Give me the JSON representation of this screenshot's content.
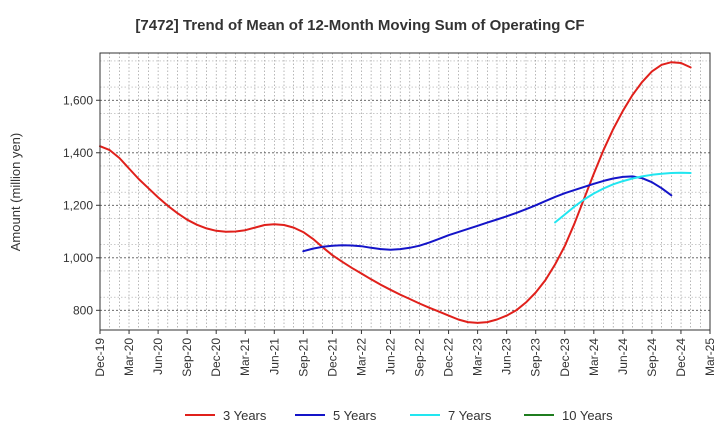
{
  "chart_data": {
    "type": "line",
    "title": "[7472]  Trend of Mean of 12-Month Moving Sum of Operating CF",
    "xlabel": "",
    "ylabel": "Amount (million yen)",
    "ylim": [
      725,
      1780
    ],
    "yticks": [
      800,
      1000,
      1200,
      1400,
      1600
    ],
    "ytick_labels": [
      "800",
      "1,000",
      "1,200",
      "1,400",
      "1,600"
    ],
    "x_start": "Dec-19",
    "x_months_total": 63,
    "xtick_labels": [
      "Dec-19",
      "Mar-20",
      "Jun-20",
      "Sep-20",
      "Dec-20",
      "Mar-21",
      "Jun-21",
      "Sep-21",
      "Dec-21",
      "Mar-22",
      "Jun-22",
      "Sep-22",
      "Dec-22",
      "Mar-23",
      "Jun-23",
      "Sep-23",
      "Dec-23",
      "Mar-24",
      "Jun-24",
      "Sep-24",
      "Dec-24",
      "Mar-25"
    ],
    "grid": true,
    "legend_position": "bottom",
    "series": [
      {
        "name": "3 Years",
        "color": "#e0201b",
        "start_index": 0,
        "values": [
          1425,
          1410,
          1380,
          1340,
          1300,
          1265,
          1230,
          1198,
          1170,
          1145,
          1126,
          1112,
          1103,
          1099,
          1100,
          1105,
          1115,
          1125,
          1128,
          1125,
          1115,
          1098,
          1072,
          1040,
          1010,
          985,
          962,
          940,
          918,
          897,
          878,
          860,
          843,
          826,
          810,
          795,
          780,
          765,
          755,
          752,
          755,
          765,
          780,
          800,
          830,
          868,
          915,
          975,
          1045,
          1130,
          1225,
          1320,
          1410,
          1490,
          1560,
          1620,
          1670,
          1710,
          1735,
          1745,
          1742,
          1725
        ]
      },
      {
        "name": "5 Years",
        "color": "#1414c8",
        "start_index": 21,
        "values": [
          1025,
          1035,
          1042,
          1046,
          1048,
          1047,
          1044,
          1038,
          1033,
          1031,
          1033,
          1038,
          1046,
          1058,
          1072,
          1086,
          1098,
          1110,
          1122,
          1134,
          1146,
          1158,
          1171,
          1185,
          1200,
          1216,
          1232,
          1246,
          1258,
          1270,
          1282,
          1293,
          1302,
          1308,
          1310,
          1303,
          1288,
          1265,
          1238
        ]
      },
      {
        "name": "7 Years",
        "color": "#22e6f0",
        "start_index": 47,
        "values": [
          1135,
          1165,
          1195,
          1222,
          1245,
          1264,
          1280,
          1292,
          1302,
          1310,
          1316,
          1320,
          1323,
          1324,
          1323
        ]
      },
      {
        "name": "10 Years",
        "color": "#1f7d1f",
        "start_index": 0,
        "values": []
      }
    ]
  }
}
